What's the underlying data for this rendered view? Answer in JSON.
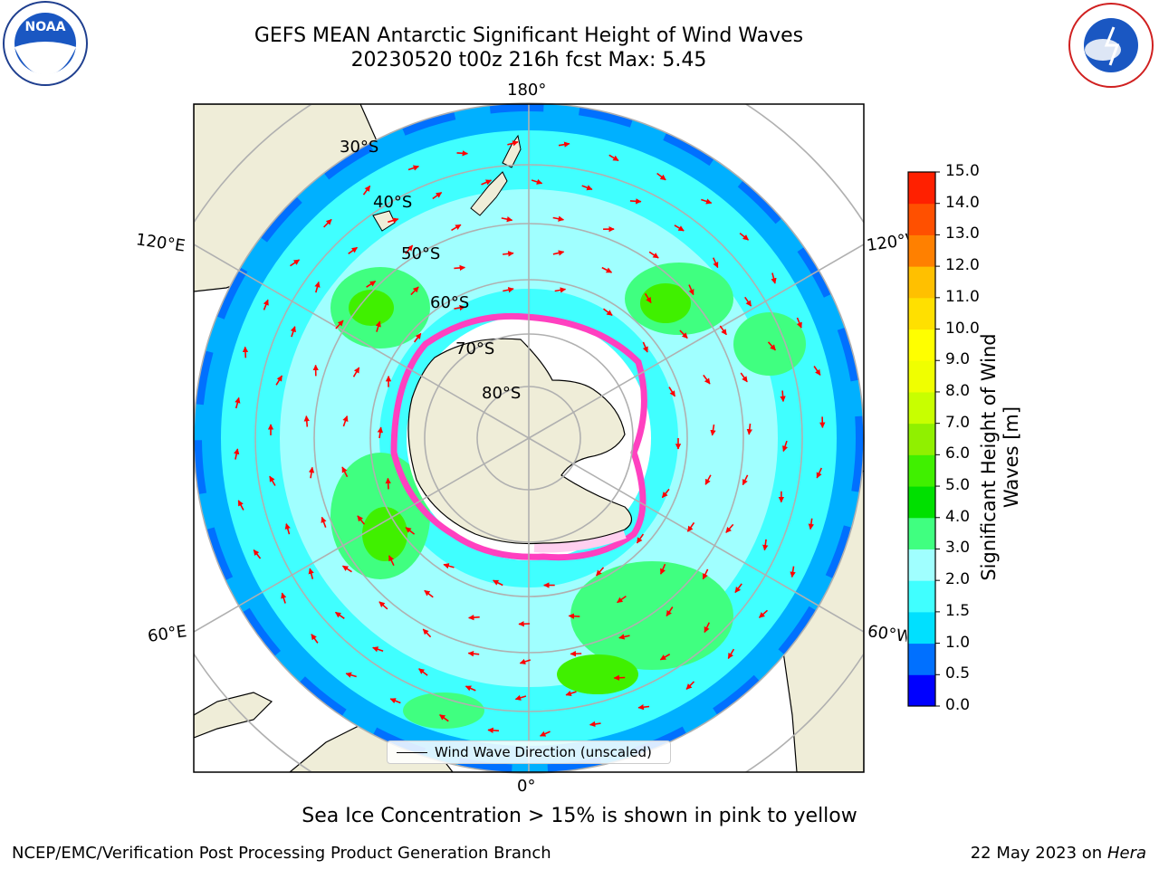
{
  "title": {
    "line1": "GEFS MEAN Antarctic Significant Height of Wind Waves",
    "line2": "20230520 t00z 216h fcst   Max: 5.45"
  },
  "logos": {
    "left": "NOAA",
    "right": "NATIONAL WEATHER SERVICE"
  },
  "map": {
    "longitude_labels": {
      "top": "180°",
      "bottom": "0°",
      "left_upper": "120°E",
      "left_lower": "60°E",
      "right_upper": "120°W",
      "right_lower": "60°W"
    },
    "latitude_labels": [
      "30°S",
      "40°S",
      "50°S",
      "60°S",
      "70°S",
      "80°S"
    ],
    "colors": {
      "land": "#efedd8",
      "ice_free_ocean": "#ffffff",
      "sea_ice_edge": "#ff40c0",
      "arrows": "#ff0000",
      "grid": "#b0b0b0"
    }
  },
  "legend": {
    "label": "Wind Wave Direction (unscaled)"
  },
  "colorbar": {
    "label": "Significant Height of Wind Waves [m]",
    "ticks": [
      "0.0",
      "0.5",
      "1.0",
      "1.5",
      "2.0",
      "3.0",
      "4.0",
      "5.0",
      "6.0",
      "7.0",
      "8.0",
      "9.0",
      "10.0",
      "11.0",
      "12.0",
      "13.0",
      "14.0",
      "15.0"
    ],
    "colors": [
      "#0000ff",
      "#0070ff",
      "#00e0ff",
      "#40ffff",
      "#a0ffff",
      "#40ff80",
      "#00e000",
      "#40f000",
      "#90f000",
      "#c8ff00",
      "#f0ff00",
      "#ffff00",
      "#ffe000",
      "#ffc000",
      "#ff8000",
      "#ff5000",
      "#ff2000"
    ]
  },
  "footer": {
    "note": "Sea Ice Concentration > 15% is shown in pink to yellow",
    "left": "NCEP/EMC/Verification Post Processing Product Generation Branch",
    "right_date": "22 May 2023 on",
    "right_machine": "Hera"
  }
}
